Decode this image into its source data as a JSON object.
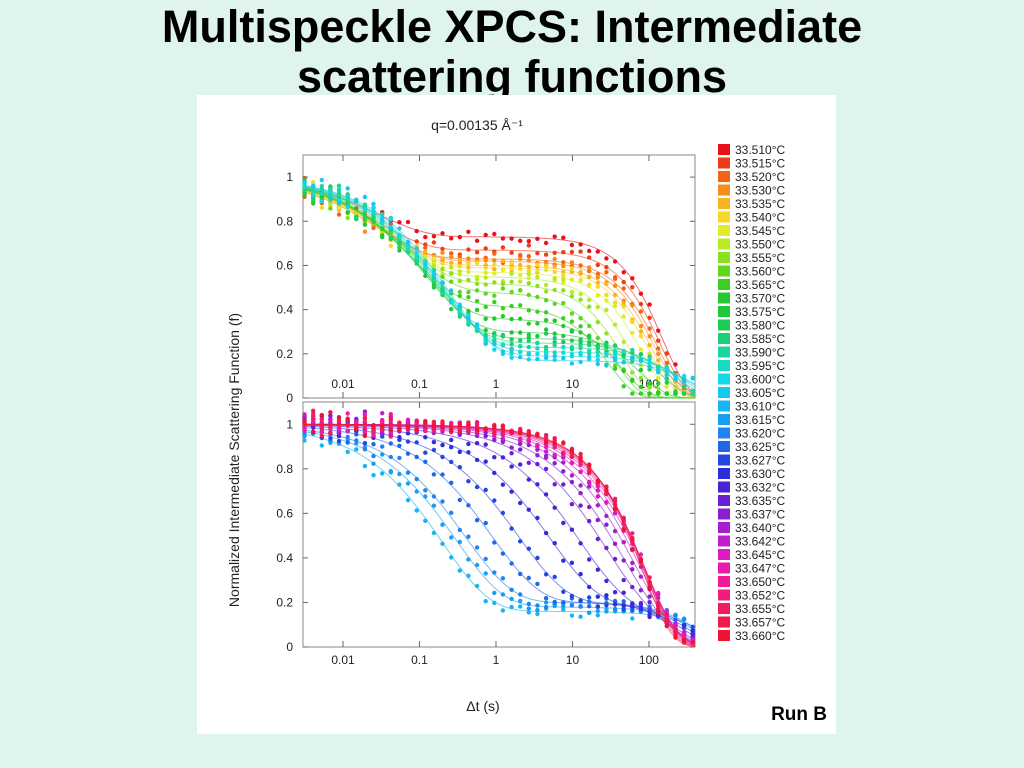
{
  "slide": {
    "title_line1": "Multispeckle XPCS: Intermediate",
    "title_line2": "scattering functions",
    "run_label": "Run B"
  },
  "chart_data": {
    "type": "scatter",
    "title": "q=0.00135 Å⁻¹",
    "ylabel": "Normalized Intermediate Scattering Function (f)",
    "xlabel": "Δt (s)",
    "xscale": "log",
    "xlim": [
      0.003,
      400
    ],
    "ylim": [
      0,
      1.1
    ],
    "x_ticks": [
      "0.01",
      "0.1",
      "1",
      "10",
      "100"
    ],
    "y_ticks": [
      "0",
      "0.2",
      "0.4",
      "0.6",
      "0.8",
      "1"
    ],
    "grid": false,
    "legend_position": "right",
    "panels": [
      {
        "name": "upper",
        "series": [
          {
            "name": "33.510°C",
            "color": "#e8111c",
            "plateau": 0.73,
            "beta_time": 0.03,
            "tau": 150
          },
          {
            "name": "33.515°C",
            "color": "#f03c12",
            "plateau": 0.67,
            "beta_time": 0.03,
            "tau": 140
          },
          {
            "name": "33.520°C",
            "color": "#f46414",
            "plateau": 0.63,
            "beta_time": 0.03,
            "tau": 130
          },
          {
            "name": "33.530°C",
            "color": "#f78c1a",
            "plateau": 0.62,
            "beta_time": 0.035,
            "tau": 120
          },
          {
            "name": "33.535°C",
            "color": "#f9b222",
            "plateau": 0.6,
            "beta_time": 0.04,
            "tau": 110
          },
          {
            "name": "33.540°C",
            "color": "#f6d72a",
            "plateau": 0.59,
            "beta_time": 0.04,
            "tau": 100
          },
          {
            "name": "33.545°C",
            "color": "#e0ec2a",
            "plateau": 0.57,
            "beta_time": 0.045,
            "tau": 80
          },
          {
            "name": "33.550°C",
            "color": "#b8ea26",
            "plateau": 0.55,
            "beta_time": 0.05,
            "tau": 60
          },
          {
            "name": "33.555°C",
            "color": "#88e21f",
            "plateau": 0.52,
            "beta_time": 0.06,
            "tau": 45
          },
          {
            "name": "33.560°C",
            "color": "#5cd81d",
            "plateau": 0.48,
            "beta_time": 0.07,
            "tau": 35
          },
          {
            "name": "33.565°C",
            "color": "#3ccf22",
            "plateau": 0.42,
            "beta_time": 0.08,
            "tau": 30
          },
          {
            "name": "33.570°C",
            "color": "#25c92d",
            "plateau": 0.36,
            "beta_time": 0.1,
            "tau": 45
          },
          {
            "name": "33.575°C",
            "color": "#1ec83a",
            "plateau": 0.3,
            "beta_time": 0.12,
            "tau": 80
          },
          {
            "name": "33.580°C",
            "color": "#1dcb52",
            "plateau": 0.27,
            "beta_time": 0.14,
            "tau": 150
          },
          {
            "name": "33.585°C",
            "color": "#1ccf76",
            "plateau": 0.25,
            "beta_time": 0.16,
            "tau": 200
          },
          {
            "name": "33.590°C",
            "color": "#1ad59f",
            "plateau": 0.23,
            "beta_time": 0.18,
            "tau": 250
          },
          {
            "name": "33.595°C",
            "color": "#18d9c4",
            "plateau": 0.21,
            "beta_time": 0.2,
            "tau": 300
          },
          {
            "name": "33.600°C",
            "color": "#16d8e4",
            "plateau": 0.19,
            "beta_time": 0.22,
            "tau": 350
          },
          {
            "name": "33.605°C",
            "color": "#17c7f0",
            "plateau": 0.17,
            "beta_time": 0.25,
            "tau": 400
          }
        ]
      },
      {
        "name": "lower",
        "series": [
          {
            "name": "33.610°C",
            "color": "#16b4f2",
            "plateau": 0.16,
            "beta_time": 0.2,
            "tau": 600
          },
          {
            "name": "33.615°C",
            "color": "#1b9ef2",
            "plateau": 0.18,
            "beta_time": 0.3,
            "tau": 500
          },
          {
            "name": "33.620°C",
            "color": "#1f84ef",
            "plateau": 0.2,
            "beta_time": 0.4,
            "tau": 450
          },
          {
            "name": "33.625°C",
            "color": "#2266e9",
            "plateau": 0.2,
            "beta_time": 0.9,
            "tau": 400
          },
          {
            "name": "33.627°C",
            "color": "#2447e2",
            "plateau": 0.2,
            "beta_time": 2,
            "tau": 350
          },
          {
            "name": "33.630°C",
            "color": "#2e2ddb",
            "plateau": 0.2,
            "beta_time": 5,
            "tau": 300
          },
          {
            "name": "33.632°C",
            "color": "#4a22d8",
            "plateau": 0.2,
            "beta_time": 12,
            "tau": 250
          },
          {
            "name": "33.635°C",
            "color": "#6b1fd5",
            "plateau": 0.2,
            "beta_time": 25,
            "tau": 220
          },
          {
            "name": "33.637°C",
            "color": "#8b1dd2",
            "plateau": 0.2,
            "beta_time": 40,
            "tau": 200
          },
          {
            "name": "33.640°C",
            "color": "#a91ccf",
            "plateau": 0.2,
            "beta_time": 60,
            "tau": 190
          },
          {
            "name": "33.642°C",
            "color": "#c41ccb",
            "plateau": 0.2,
            "beta_time": 80,
            "tau": 180
          },
          {
            "name": "33.645°C",
            "color": "#da1cc3",
            "plateau": 0.2,
            "beta_time": 100,
            "tau": 170
          },
          {
            "name": "33.647°C",
            "color": "#e91cae",
            "plateau": 0.2,
            "beta_time": 120,
            "tau": 160
          },
          {
            "name": "33.650°C",
            "color": "#ef1c94",
            "plateau": 0.2,
            "beta_time": 140,
            "tau": 150
          },
          {
            "name": "33.652°C",
            "color": "#f21c7a",
            "plateau": 0.2,
            "beta_time": 160,
            "tau": 140
          },
          {
            "name": "33.655°C",
            "color": "#f31b60",
            "plateau": 0.2,
            "beta_time": 180,
            "tau": 130
          },
          {
            "name": "33.657°C",
            "color": "#f21a47",
            "plateau": 0.2,
            "beta_time": 200,
            "tau": 120
          },
          {
            "name": "33.660°C",
            "color": "#ee1530",
            "plateau": 0.2,
            "beta_time": 220,
            "tau": 110
          }
        ]
      }
    ]
  }
}
